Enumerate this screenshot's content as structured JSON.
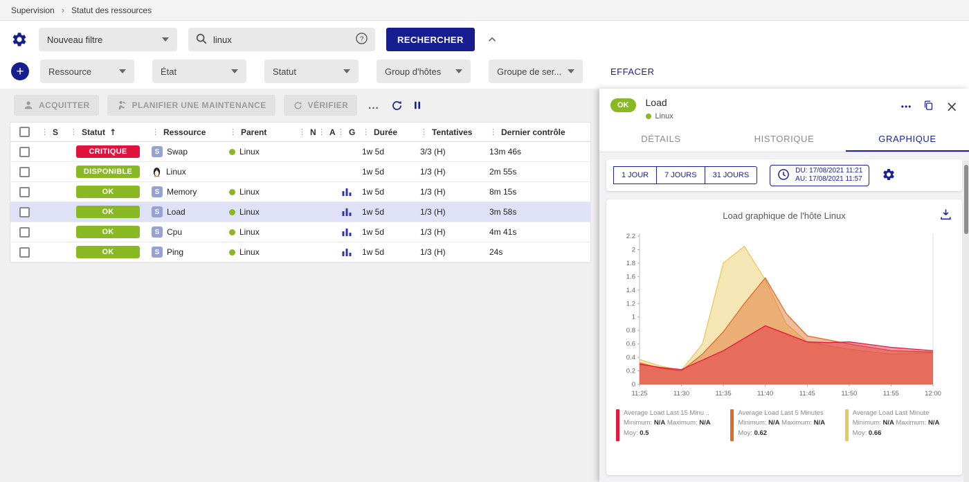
{
  "colors": {
    "accent": "#1b2297",
    "primary_button": "#151d8f",
    "ok_green": "#88b923",
    "critical_red": "#e2123e",
    "selected_row": "#dfe2f6"
  },
  "icons": {
    "more": "•••",
    "close": "×",
    "sort_asc": "↑",
    "drag_handle": "⋮",
    "breadcrumb_sep": "›",
    "toolbar_more": "..."
  },
  "breadcrumb": {
    "items": [
      "Supervision",
      "Statut des ressources"
    ]
  },
  "filters": {
    "preset": "Nouveau filtre",
    "search_value": "linux",
    "search_button": "RECHERCHER",
    "clear": "EFFACER",
    "criteria": [
      {
        "label": "Ressource"
      },
      {
        "label": "État"
      },
      {
        "label": "Statut"
      },
      {
        "label": "Group d'hôtes"
      },
      {
        "label": "Groupe de ser..."
      }
    ]
  },
  "toolbar": {
    "acknowledge": "ACQUITTER",
    "maintenance": "PLANIFIER UNE MAINTENANCE",
    "check": "VÉRIFIER"
  },
  "table": {
    "headers": {
      "severity": "S",
      "status": "Statut",
      "resource": "Ressource",
      "parent": "Parent",
      "n": "N",
      "a": "A",
      "g": "G",
      "duration": "Durée",
      "tries": "Tentatives",
      "last_check": "Dernier contrôle"
    },
    "rows": [
      {
        "status": "CRITIQUE",
        "status_color": "#e2123e",
        "kind": "service",
        "resource": "Swap",
        "parent": "Linux",
        "has_graph": false,
        "duration": "1w 5d",
        "tries": "3/3 (H)",
        "last_check": "13m 46s",
        "selected": false
      },
      {
        "status": "DISPONIBLE",
        "status_color": "#88b923",
        "kind": "host",
        "resource": "Linux",
        "parent": "",
        "has_graph": false,
        "duration": "1w 5d",
        "tries": "1/3 (H)",
        "last_check": "2m 55s",
        "selected": false
      },
      {
        "status": "OK",
        "status_color": "#88b923",
        "kind": "service",
        "resource": "Memory",
        "parent": "Linux",
        "has_graph": true,
        "duration": "1w 5d",
        "tries": "1/3 (H)",
        "last_check": "8m 15s",
        "selected": false
      },
      {
        "status": "OK",
        "status_color": "#88b923",
        "kind": "service",
        "resource": "Load",
        "parent": "Linux",
        "has_graph": true,
        "duration": "1w 5d",
        "tries": "1/3 (H)",
        "last_check": "3m 58s",
        "selected": true
      },
      {
        "status": "OK",
        "status_color": "#88b923",
        "kind": "service",
        "resource": "Cpu",
        "parent": "Linux",
        "has_graph": true,
        "duration": "1w 5d",
        "tries": "1/3 (H)",
        "last_check": "4m 41s",
        "selected": false
      },
      {
        "status": "OK",
        "status_color": "#88b923",
        "kind": "service",
        "resource": "Ping",
        "parent": "Linux",
        "has_graph": true,
        "duration": "1w 5d",
        "tries": "1/3 (H)",
        "last_check": "24s",
        "selected": false
      }
    ]
  },
  "panel": {
    "status": "OK",
    "title": "Load",
    "parent": "Linux",
    "tabs": [
      {
        "label": "DÉTAILS",
        "active": false
      },
      {
        "label": "HISTORIQUE",
        "active": false
      },
      {
        "label": "GRAPHIQUE",
        "active": true
      }
    ],
    "time_ranges": [
      {
        "label": "1 JOUR"
      },
      {
        "label": "7 JOURS"
      },
      {
        "label": "31 JOURS"
      }
    ],
    "date_from": "DU: 17/08/2021 11:21",
    "date_to": "AU: 17/08/2021 11:57"
  },
  "chart_data": {
    "type": "area",
    "title": "Load graphique de l'hôte Linux",
    "ylim": [
      0,
      2.2
    ],
    "y_ticks": [
      0,
      0.2,
      0.4,
      0.6,
      0.8,
      1,
      1.2,
      1.4,
      1.6,
      1.8,
      2,
      2.2
    ],
    "x_labels": [
      "11:25",
      "11:30",
      "11:35",
      "11:40",
      "11:45",
      "11:50",
      "11:55",
      "12:00"
    ],
    "x_tick_minutes": [
      0,
      5,
      10,
      15,
      20,
      25,
      30,
      35
    ],
    "legend_labels": {
      "minimum": "Minimum:",
      "maximum": "Maximum:",
      "moy": "Moy:"
    },
    "series": [
      {
        "name": "Average Load Last 15 Minu ..",
        "color": "#e01b3c",
        "minimum": "N/A",
        "maximum": "N/A",
        "moy": "0.5",
        "x": [
          0,
          2.5,
          5,
          10,
          15,
          20,
          22.5,
          25,
          30,
          35
        ],
        "values": [
          0.3,
          0.25,
          0.22,
          0.5,
          0.87,
          0.63,
          0.62,
          0.63,
          0.55,
          0.5
        ]
      },
      {
        "name": "Average Load Last 5 Minutes",
        "color": "#df6b27",
        "minimum": "N/A",
        "maximum": "N/A",
        "moy": "0.62",
        "x": [
          0,
          2.5,
          5,
          7.5,
          10,
          12.5,
          15,
          17.5,
          20,
          25,
          30,
          35
        ],
        "values": [
          0.32,
          0.24,
          0.2,
          0.45,
          0.78,
          1.2,
          1.58,
          1.05,
          0.72,
          0.6,
          0.5,
          0.48
        ]
      },
      {
        "name": "Average Load Last Minute",
        "color": "#e9c95c",
        "minimum": "N/A",
        "maximum": "N/A",
        "moy": "0.66",
        "x": [
          0,
          2.5,
          5,
          7.5,
          10,
          12.5,
          15,
          17.5,
          20,
          25,
          30,
          35
        ],
        "values": [
          0.37,
          0.27,
          0.21,
          0.6,
          1.8,
          2.05,
          1.55,
          0.9,
          0.63,
          0.52,
          0.45,
          0.47
        ]
      }
    ]
  }
}
